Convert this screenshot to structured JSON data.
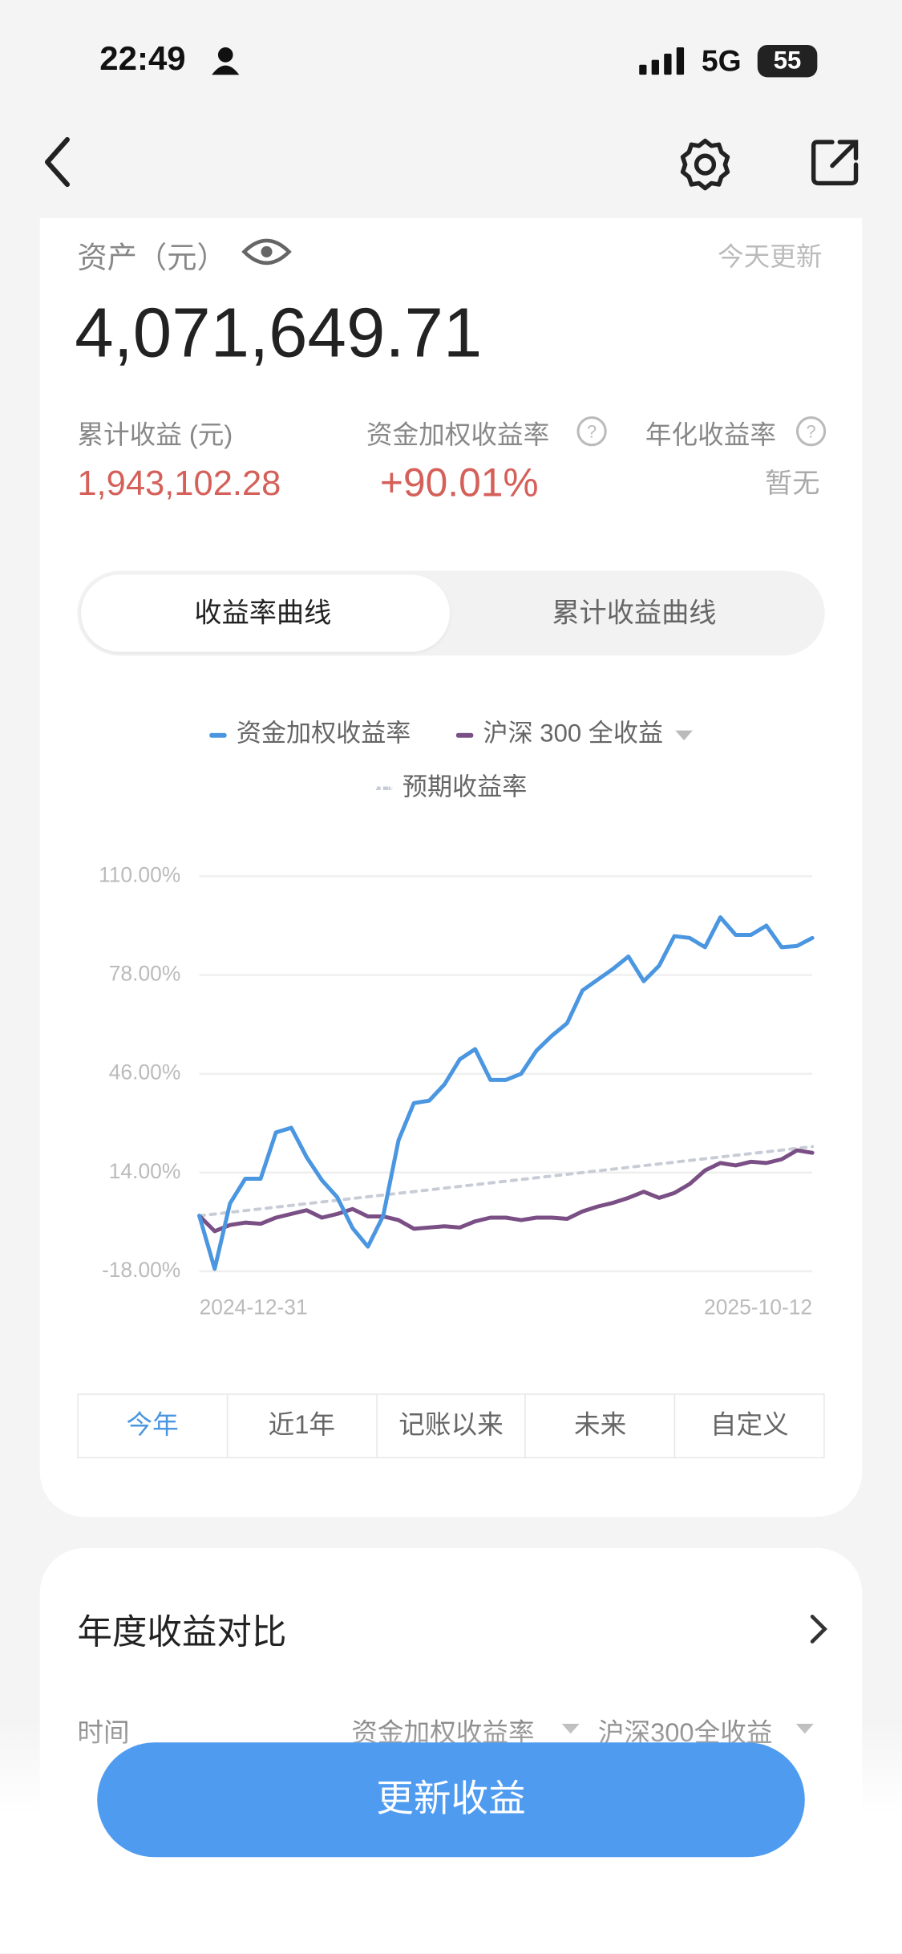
{
  "status_bar": {
    "time": "22:49",
    "network": "5G",
    "battery": "55"
  },
  "summary": {
    "asset_label": "资产（元）",
    "updated": "今天更新",
    "asset_value": "4,071,649.71",
    "cum_label": "累计收益 (元)",
    "cum_value": "1,943,102.28",
    "mwr_label": "资金加权收益率",
    "mwr_value": "+90.01%",
    "ann_label": "年化收益率",
    "ann_value": "暂无"
  },
  "curve_tabs": [
    "收益率曲线",
    "累计收益曲线"
  ],
  "range_tabs": [
    "今年",
    "近1年",
    "记账以来",
    "未来",
    "自定义"
  ],
  "annual": {
    "title": "年度收益对比",
    "col_time": "时间",
    "col_a": "资金加权收益率",
    "col_b": "沪深300全收益"
  },
  "button": "更新收益",
  "chart_data": {
    "type": "line",
    "categories": [
      "2024-12-31",
      null,
      null,
      null,
      null,
      null,
      null,
      null,
      null,
      null,
      null,
      null,
      null,
      null,
      null,
      null,
      null,
      null,
      null,
      null,
      null,
      null,
      null,
      null,
      null,
      null,
      null,
      null,
      null,
      null,
      null,
      null,
      null,
      null,
      null,
      null,
      null,
      null,
      null,
      null,
      "2025-10-12"
    ],
    "ylim": [
      -18,
      110
    ],
    "yticks": [
      {
        "value": -18,
        "label": "-18.00%"
      },
      {
        "value": 14,
        "label": "14.00%"
      },
      {
        "value": 46,
        "label": "46.00%"
      },
      {
        "value": 78,
        "label": "78.00%"
      },
      {
        "value": 110,
        "label": "110.00%"
      }
    ],
    "grid": true,
    "series": [
      {
        "name": "资金加权收益率",
        "color": "#4a96e0",
        "values": [
          0,
          -17.2,
          4,
          12,
          12,
          27,
          28.5,
          19,
          11.5,
          6,
          -4,
          -10,
          0,
          24.5,
          36.5,
          37.3,
          42.6,
          50.7,
          54,
          44,
          44,
          46,
          53.5,
          58.3,
          62.4,
          73,
          76.5,
          80,
          84,
          76,
          81,
          90.6,
          90,
          87,
          96.7,
          91,
          91,
          94,
          87,
          87.4,
          90
        ]
      },
      {
        "name": "沪深 300 全收益",
        "color": "#7a4f85",
        "values": [
          0,
          -5,
          -3,
          -2.2,
          -2.6,
          -0.6,
          0.6,
          1.8,
          -0.6,
          0.6,
          2.2,
          -0.2,
          -0.2,
          -1.4,
          -4.2,
          -3.8,
          -3.4,
          -3.8,
          -1.8,
          -0.6,
          -0.6,
          -1.4,
          -0.6,
          -0.6,
          -1,
          1.4,
          3,
          4.2,
          5.8,
          7.8,
          5.8,
          7.4,
          10.3,
          14.7,
          17.1,
          16.3,
          17.5,
          17.1,
          18.3,
          21.2,
          20.4
        ]
      },
      {
        "name": "预期收益率",
        "color": "#c8ccd6",
        "line_style": "dotted",
        "values": [
          0,
          0.56,
          1.12,
          1.68,
          2.24,
          2.8,
          3.36,
          3.92,
          4.48,
          5.04,
          5.6,
          6.16,
          6.72,
          7.28,
          7.84,
          8.4,
          8.96,
          9.52,
          10.08,
          10.64,
          11.2,
          11.76,
          12.32,
          12.88,
          13.44,
          14,
          14.56,
          15.12,
          15.68,
          16.24,
          16.8,
          17.36,
          17.92,
          18.48,
          19.04,
          19.6,
          20.16,
          20.72,
          21.28,
          21.84,
          22.4
        ]
      }
    ]
  }
}
